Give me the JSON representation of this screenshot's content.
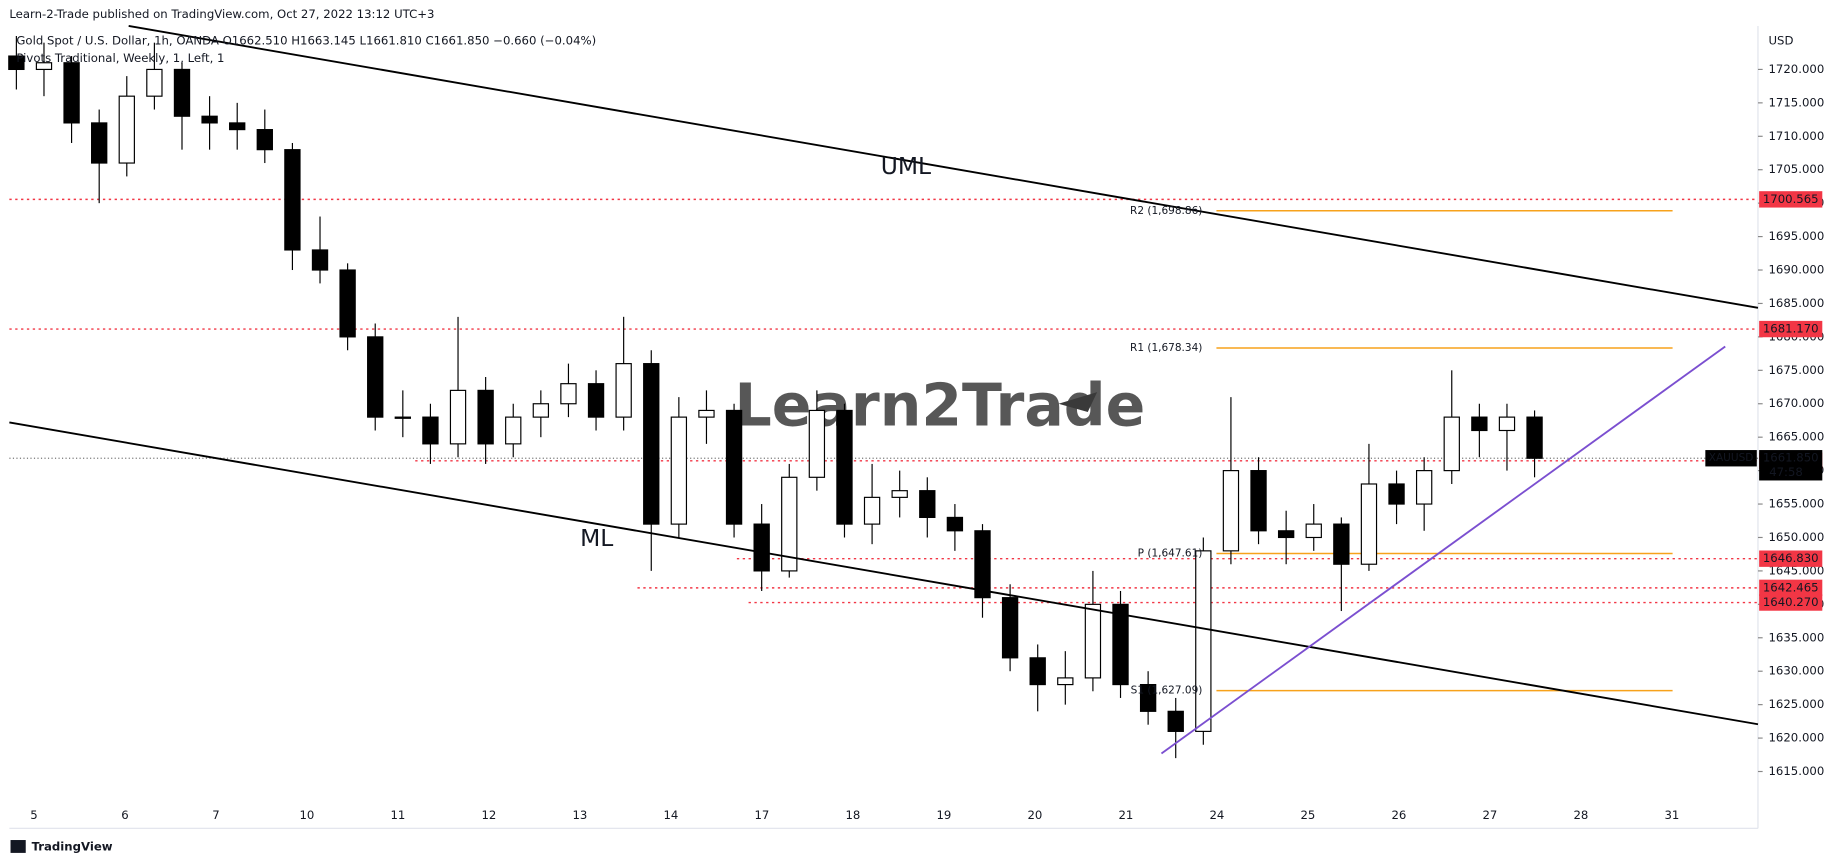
{
  "chart_data": {
    "type": "candlestick",
    "title": "Learn-2-Trade published on TradingView.com, Oct 27, 2022 13:12 UTC+3",
    "symbol_line": "Gold Spot / U.S. Dollar, 1h, OANDA  O1662.510  H1663.145  L1661.810  C1661.850  −0.660 (−0.04%)",
    "indicator": "Pivots Traditional, Weekly, 1, Left, 1",
    "currency": "USD",
    "watermark": "Learn2Trade",
    "footer": "TradingView",
    "annotations": [
      "UML",
      "ML"
    ],
    "categories": [
      "5",
      "6",
      "7",
      "10",
      "11",
      "12",
      "13",
      "14",
      "17",
      "18",
      "19",
      "20",
      "21",
      "24",
      "25",
      "26",
      "27",
      "28",
      "31"
    ],
    "ylim": [
      1606.5,
      1726.5
    ],
    "yticks": [
      {
        "value": 1615,
        "label": "1615.000"
      },
      {
        "value": 1620,
        "label": "1620.000"
      },
      {
        "value": 1625,
        "label": "1625.000"
      },
      {
        "value": 1630,
        "label": "1630.000"
      },
      {
        "value": 1635,
        "label": "1635.000"
      },
      {
        "value": 1640,
        "label": "1640.000"
      },
      {
        "value": 1645,
        "label": "1645.000"
      },
      {
        "value": 1650,
        "label": "1650.000"
      },
      {
        "value": 1655,
        "label": "1655.000"
      },
      {
        "value": 1660,
        "label": "1660.000"
      },
      {
        "value": 1665,
        "label": "1665.000"
      },
      {
        "value": 1670,
        "label": "1670.000"
      },
      {
        "value": 1675,
        "label": "1675.000"
      },
      {
        "value": 1680,
        "label": "1680.000"
      },
      {
        "value": 1685,
        "label": "1685.000"
      },
      {
        "value": 1690,
        "label": "1690.000"
      },
      {
        "value": 1695,
        "label": "1695.000"
      },
      {
        "value": 1700,
        "label": "1700.000"
      },
      {
        "value": 1705,
        "label": "1705.000"
      },
      {
        "value": 1710,
        "label": "1710.000"
      },
      {
        "value": 1715,
        "label": "1715.000"
      },
      {
        "value": 1720,
        "label": "1720.000"
      }
    ],
    "up_color": "#ffffff",
    "down_color": "#000000",
    "candles": {
      "open": [
        1722,
        1720,
        1721,
        1712,
        1706,
        1716,
        1720,
        1713,
        1712,
        1711,
        1708,
        1693,
        1690,
        1680,
        1668,
        1668,
        1664,
        1672,
        1664,
        1668,
        1670,
        1673,
        1668,
        1676,
        1652,
        1668,
        1669,
        1652,
        1645,
        1659,
        1669,
        1652,
        1656,
        1657,
        1653,
        1651,
        1641,
        1632,
        1628,
        1629,
        1640,
        1628,
        1624,
        1621,
        1648,
        1660,
        1651,
        1650,
        1652,
        1646,
        1658,
        1655,
        1660,
        1668,
        1666,
        1668
      ],
      "high": [
        1725,
        1724,
        1722,
        1714,
        1719,
        1724,
        1721,
        1716,
        1715,
        1714,
        1709,
        1698,
        1691,
        1682,
        1672,
        1670,
        1683,
        1674,
        1670,
        1672,
        1676,
        1675,
        1683,
        1678,
        1671,
        1672,
        1670,
        1655,
        1661,
        1672,
        1670,
        1661,
        1660,
        1659,
        1655,
        1652,
        1643,
        1634,
        1633,
        1645,
        1642,
        1630,
        1626,
        1650,
        1671,
        1662,
        1654,
        1655,
        1653,
        1664,
        1660,
        1662,
        1675,
        1670,
        1670,
        1669
      ],
      "low": [
        1717,
        1716,
        1709,
        1700,
        1704,
        1714,
        1708,
        1708,
        1708,
        1706,
        1690,
        1688,
        1678,
        1666,
        1665,
        1661,
        1662,
        1661,
        1662,
        1665,
        1668,
        1666,
        1666,
        1645,
        1650,
        1664,
        1650,
        1642,
        1644,
        1657,
        1650,
        1649,
        1653,
        1650,
        1648,
        1638,
        1630,
        1624,
        1625,
        1627,
        1626,
        1622,
        1617,
        1619,
        1646,
        1649,
        1646,
        1648,
        1639,
        1645,
        1652,
        1651,
        1658,
        1662,
        1660,
        1659
      ],
      "close": [
        1720,
        1721,
        1712,
        1706,
        1716,
        1720,
        1713,
        1712,
        1711,
        1708,
        1693,
        1690,
        1680,
        1668,
        1668,
        1664,
        1672,
        1664,
        1668,
        1670,
        1673,
        1668,
        1676,
        1652,
        1668,
        1669,
        1652,
        1645,
        1659,
        1669,
        1652,
        1656,
        1657,
        1653,
        1651,
        1641,
        1632,
        1628,
        1629,
        1640,
        1628,
        1624,
        1621,
        1648,
        1660,
        1651,
        1650,
        1652,
        1646,
        1658,
        1655,
        1660,
        1668,
        1666,
        1668,
        1661.85
      ]
    },
    "levels_color": "#f23645",
    "levels": [
      {
        "value": 1700.565,
        "label": "1700.565"
      },
      {
        "value": 1681.17,
        "label": "1681.170"
      },
      {
        "value": 1661.47,
        "label": "1661.470"
      },
      {
        "value": 1646.83,
        "label": "1646.830"
      },
      {
        "value": 1642.465,
        "label": "1642.465"
      },
      {
        "value": 1640.27,
        "label": "1640.270"
      }
    ],
    "pivot_color": "#f7a21b",
    "pivots": [
      {
        "value": 1698.86,
        "label": "R2 (1,698.86)"
      },
      {
        "value": 1678.34,
        "label": "R1 (1,678.34)"
      },
      {
        "value": 1647.61,
        "label": "P (1,647.61)"
      },
      {
        "value": 1627.09,
        "label": "S1 (1,627.09)"
      }
    ],
    "last_price": {
      "value": 1661.85,
      "label": "1661.850",
      "symbol": "XAUUSD",
      "countdown": "47:58"
    }
  }
}
